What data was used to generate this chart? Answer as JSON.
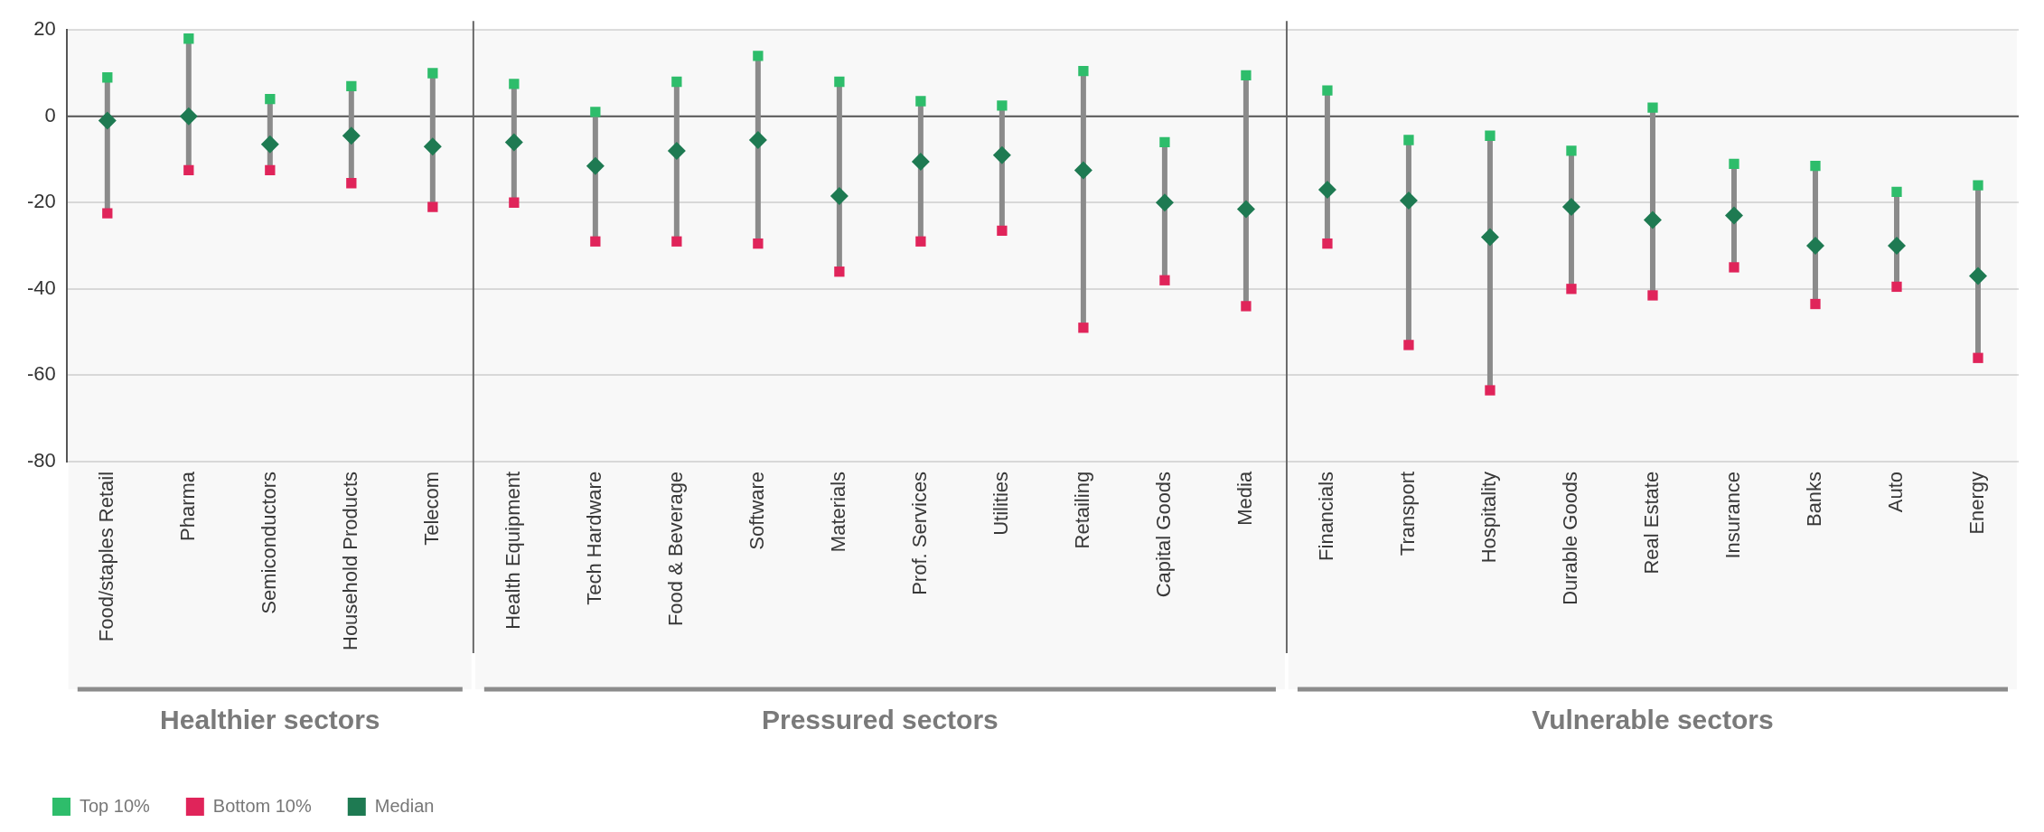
{
  "chart_data": {
    "type": "scatter",
    "categories": [
      "Food/staples Retail",
      "Pharma",
      "Semiconductors",
      "Household Products",
      "Telecom",
      "Health Equipment",
      "Tech Hardware",
      "Food & Beverage",
      "Software",
      "Materials",
      "Prof. Services",
      "Utilities",
      "Retailing",
      "Capital Goods",
      "Media",
      "Financials",
      "Transport",
      "Hospitality",
      "Durable Goods",
      "Real Estate",
      "Insurance",
      "Banks",
      "Auto",
      "Energy"
    ],
    "series": [
      {
        "name": "Top 10%",
        "color": "#2ebd6b",
        "marker": "square",
        "values": [
          9,
          18,
          4,
          7,
          10,
          7.5,
          1,
          8,
          14,
          8,
          3.5,
          2.5,
          10.5,
          -6,
          9.5,
          6,
          -5.5,
          -4.5,
          -8,
          2,
          -11,
          -11.5,
          -17.5,
          -16
        ]
      },
      {
        "name": "Bottom 10%",
        "color": "#e0245a",
        "marker": "square",
        "values": [
          -22.5,
          -12.5,
          -12.5,
          -15.5,
          -21,
          -20,
          -29,
          -29,
          -29.5,
          -36,
          -29,
          -26.5,
          -49,
          -38,
          -44,
          -29.5,
          -53,
          -63.5,
          -40,
          -41.5,
          -35,
          -43.5,
          -39.5,
          -56
        ]
      },
      {
        "name": "Median",
        "color": "#1e7a52",
        "marker": "diamond",
        "values": [
          -1,
          0,
          -6.5,
          -4.5,
          -7,
          -6,
          -11.5,
          -8,
          -5.5,
          -18.5,
          -10.5,
          -9,
          -12.5,
          -20,
          -21.5,
          -17,
          -19.5,
          -28,
          -21,
          -24,
          -23,
          -30,
          -30,
          -37
        ]
      }
    ],
    "ylim": [
      -80,
      20
    ],
    "yticks": [
      -80,
      -60,
      -40,
      -20,
      0,
      20
    ],
    "grid": "y",
    "legend": "bottom left",
    "ref_lines": [
      {
        "axis": "y",
        "value": 0,
        "color": "#555555"
      }
    ],
    "bands": [
      {
        "axis": "x",
        "from": "Food/staples Retail",
        "to": "Telecom",
        "label": "Healthier sectors",
        "color": "#8c8c8c"
      },
      {
        "axis": "x",
        "from": "Health Equipment",
        "to": "Media",
        "label": "Pressured sectors",
        "color": "#8c8c8c"
      },
      {
        "axis": "x",
        "from": "Financials",
        "to": "Energy",
        "label": "Vulnerable sectors",
        "color": "#8c8c8c"
      }
    ]
  }
}
